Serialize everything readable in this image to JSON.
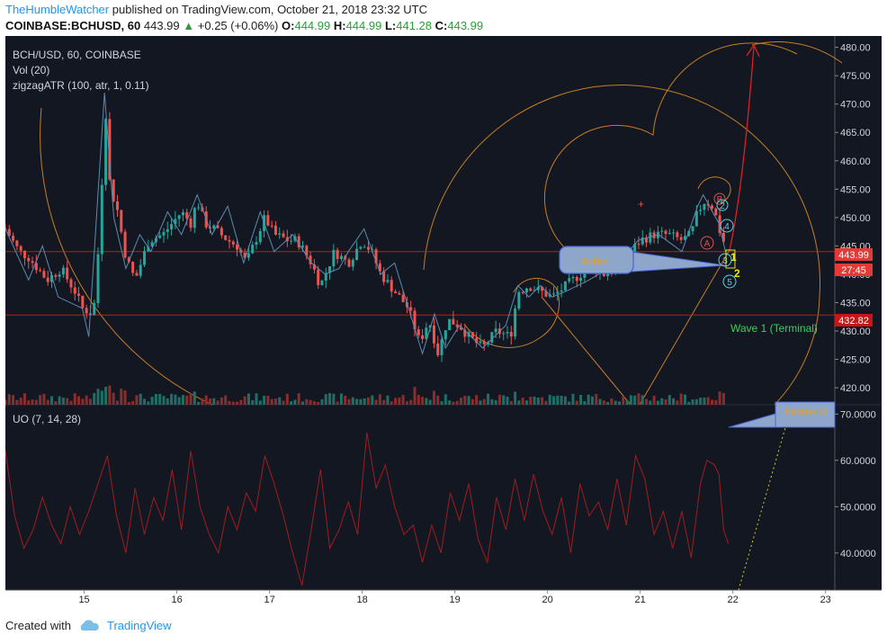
{
  "header": {
    "author": "TheHumbleWatcher",
    "published": "published on TradingView.com, October 21, 2018 23:32 UTC",
    "symbol": "COINBASE:BCHUSD, 60",
    "last": "443.99",
    "change": "+0.25 (+0.06%)",
    "o_label": "O:",
    "o": "444.99",
    "h_label": "H:",
    "h": "444.99",
    "l_label": "L:",
    "l": "441.28",
    "c_label": "C:",
    "c": "443.99"
  },
  "legend": {
    "main": "BCH/USD, 60, COINBASE",
    "vol": "Vol (20)",
    "zigzag": "zigzagATR (100, atr, 1, 0.11)",
    "uo": "UO (7, 14, 28)"
  },
  "annotations": {
    "reflex": "Reflex",
    "wave": "Wave 1 (Terminal)",
    "positive": "Positive D",
    "price_tag": "443.99",
    "countdown": "27:45",
    "level_tag": "432.82",
    "labels": [
      "B",
      "2",
      "4",
      "A",
      "3",
      "5",
      "1",
      "2"
    ]
  },
  "footer": {
    "created": "Created with",
    "brand": "TradingView"
  },
  "colors": {
    "background": "#131722",
    "up": "#26a69a",
    "down": "#ef5350",
    "zigzag": "#5b8bb0",
    "fib": "#c57e23",
    "uo": "#a01d1d",
    "hline": "#d01515",
    "arrow": "#e01f1f",
    "wave_text": "#3bd15b"
  },
  "chart_data": {
    "type": "candlestick",
    "price_axis": {
      "min": 417,
      "max": 482,
      "ticks": [
        420.0,
        425.0,
        430.0,
        435.0,
        440.0,
        445.0,
        450.0,
        455.0,
        460.0,
        465.0,
        470.0,
        475.0,
        480.0
      ]
    },
    "uo_axis": {
      "min": 32,
      "max": 72,
      "ticks": [
        40.0,
        50.0,
        60.0,
        70.0
      ]
    },
    "x_axis": {
      "labels": [
        "15",
        "16",
        "17",
        "18",
        "19",
        "20",
        "21",
        "22",
        "23"
      ],
      "start": 14.15,
      "end": 23.1
    },
    "hlines": [
      443.99,
      432.82
    ],
    "price_path": [
      [
        14.15,
        448
      ],
      [
        14.3,
        444
      ],
      [
        14.4,
        443
      ],
      [
        14.6,
        439
      ],
      [
        14.75,
        441
      ],
      [
        14.9,
        437
      ],
      [
        14.98,
        434
      ],
      [
        15.1,
        433
      ],
      [
        15.18,
        450
      ],
      [
        15.22,
        472
      ],
      [
        15.28,
        455
      ],
      [
        15.35,
        452
      ],
      [
        15.45,
        443
      ],
      [
        15.55,
        439
      ],
      [
        15.7,
        446
      ],
      [
        15.85,
        447
      ],
      [
        15.95,
        449
      ],
      [
        16.05,
        451
      ],
      [
        16.15,
        449
      ],
      [
        16.22,
        453
      ],
      [
        16.3,
        449
      ],
      [
        16.4,
        448
      ],
      [
        16.55,
        446
      ],
      [
        16.65,
        445
      ],
      [
        16.75,
        442
      ],
      [
        16.85,
        446
      ],
      [
        16.95,
        450
      ],
      [
        17.05,
        447
      ],
      [
        17.2,
        446
      ],
      [
        17.3,
        446
      ],
      [
        17.45,
        442
      ],
      [
        17.55,
        438
      ],
      [
        17.7,
        444
      ],
      [
        17.85,
        442
      ],
      [
        18.0,
        446
      ],
      [
        18.1,
        444
      ],
      [
        18.2,
        440
      ],
      [
        18.35,
        437
      ],
      [
        18.5,
        434
      ],
      [
        18.62,
        428
      ],
      [
        18.72,
        432
      ],
      [
        18.82,
        426
      ],
      [
        18.92,
        432
      ],
      [
        19.05,
        431
      ],
      [
        19.15,
        429
      ],
      [
        19.3,
        427
      ],
      [
        19.45,
        430
      ],
      [
        19.6,
        429
      ],
      [
        19.68,
        437
      ],
      [
        19.8,
        438
      ],
      [
        19.92,
        437
      ],
      [
        20.05,
        436
      ],
      [
        20.2,
        438
      ],
      [
        20.35,
        440
      ],
      [
        20.5,
        441
      ],
      [
        20.6,
        440
      ],
      [
        20.75,
        441
      ],
      [
        20.9,
        444
      ],
      [
        21.0,
        446
      ],
      [
        21.15,
        447
      ],
      [
        21.3,
        447
      ],
      [
        21.45,
        446
      ],
      [
        21.55,
        447
      ],
      [
        21.62,
        451
      ],
      [
        21.7,
        453
      ],
      [
        21.78,
        452
      ],
      [
        21.82,
        450
      ],
      [
        21.87,
        447
      ],
      [
        21.92,
        444.99
      ]
    ],
    "zigzag_points": [
      [
        14.15,
        448
      ],
      [
        14.4,
        439
      ],
      [
        14.55,
        445
      ],
      [
        14.72,
        436
      ],
      [
        14.98,
        434
      ],
      [
        15.05,
        429
      ],
      [
        15.22,
        472
      ],
      [
        15.32,
        450
      ],
      [
        15.45,
        441
      ],
      [
        15.6,
        447
      ],
      [
        15.72,
        444
      ],
      [
        15.9,
        451
      ],
      [
        16.05,
        447
      ],
      [
        16.22,
        454
      ],
      [
        16.38,
        447
      ],
      [
        16.55,
        452
      ],
      [
        16.72,
        442
      ],
      [
        16.9,
        451
      ],
      [
        17.05,
        444
      ],
      [
        17.25,
        447
      ],
      [
        17.45,
        442
      ],
      [
        17.6,
        440
      ],
      [
        17.75,
        441
      ],
      [
        17.85,
        444
      ],
      [
        18.02,
        448
      ],
      [
        18.2,
        440
      ],
      [
        18.35,
        442
      ],
      [
        18.65,
        426
      ],
      [
        18.78,
        433
      ],
      [
        18.9,
        427
      ],
      [
        19.05,
        431
      ],
      [
        19.3,
        427
      ],
      [
        19.55,
        431
      ],
      [
        19.68,
        438
      ],
      [
        19.8,
        436
      ],
      [
        19.92,
        438
      ],
      [
        20.05,
        436
      ],
      [
        20.2,
        437
      ],
      [
        20.45,
        439
      ],
      [
        20.65,
        441
      ],
      [
        20.82,
        443
      ],
      [
        20.98,
        446
      ],
      [
        21.2,
        447
      ],
      [
        21.45,
        444
      ],
      [
        21.62,
        452
      ],
      [
        21.68,
        454
      ],
      [
        21.78,
        451
      ],
      [
        21.85,
        449
      ],
      [
        21.92,
        444
      ]
    ],
    "uo_values": [
      [
        14.15,
        62
      ],
      [
        14.25,
        48
      ],
      [
        14.35,
        41
      ],
      [
        14.45,
        45
      ],
      [
        14.55,
        52
      ],
      [
        14.65,
        46
      ],
      [
        14.75,
        42
      ],
      [
        14.85,
        50
      ],
      [
        14.95,
        44
      ],
      [
        15.05,
        49
      ],
      [
        15.15,
        55
      ],
      [
        15.25,
        61
      ],
      [
        15.35,
        48
      ],
      [
        15.45,
        40
      ],
      [
        15.55,
        54
      ],
      [
        15.65,
        44
      ],
      [
        15.75,
        52
      ],
      [
        15.85,
        47
      ],
      [
        15.95,
        58
      ],
      [
        16.05,
        45
      ],
      [
        16.15,
        62
      ],
      [
        16.25,
        50
      ],
      [
        16.35,
        44
      ],
      [
        16.45,
        40
      ],
      [
        16.55,
        50
      ],
      [
        16.65,
        45
      ],
      [
        16.75,
        53
      ],
      [
        16.85,
        49
      ],
      [
        16.95,
        61
      ],
      [
        17.05,
        55
      ],
      [
        17.15,
        48
      ],
      [
        17.25,
        40
      ],
      [
        17.35,
        33
      ],
      [
        17.45,
        45
      ],
      [
        17.55,
        58
      ],
      [
        17.65,
        41
      ],
      [
        17.75,
        45
      ],
      [
        17.85,
        51
      ],
      [
        17.95,
        44
      ],
      [
        18.05,
        66
      ],
      [
        18.15,
        54
      ],
      [
        18.25,
        59
      ],
      [
        18.35,
        50
      ],
      [
        18.45,
        44
      ],
      [
        18.55,
        46
      ],
      [
        18.65,
        38
      ],
      [
        18.75,
        46
      ],
      [
        18.85,
        40
      ],
      [
        18.95,
        53
      ],
      [
        19.05,
        47
      ],
      [
        19.15,
        55
      ],
      [
        19.25,
        43
      ],
      [
        19.35,
        38
      ],
      [
        19.45,
        52
      ],
      [
        19.55,
        45
      ],
      [
        19.65,
        56
      ],
      [
        19.75,
        47
      ],
      [
        19.85,
        57
      ],
      [
        19.95,
        49
      ],
      [
        20.05,
        44
      ],
      [
        20.15,
        52
      ],
      [
        20.25,
        40
      ],
      [
        20.35,
        55
      ],
      [
        20.45,
        48
      ],
      [
        20.55,
        51
      ],
      [
        20.65,
        45
      ],
      [
        20.75,
        56
      ],
      [
        20.85,
        46
      ],
      [
        20.95,
        61
      ],
      [
        21.05,
        56
      ],
      [
        21.15,
        44
      ],
      [
        21.25,
        49
      ],
      [
        21.35,
        41
      ],
      [
        21.45,
        49
      ],
      [
        21.55,
        39
      ],
      [
        21.65,
        55
      ],
      [
        21.72,
        60
      ],
      [
        21.8,
        59
      ],
      [
        21.85,
        57
      ],
      [
        21.9,
        45
      ],
      [
        21.95,
        42
      ]
    ]
  }
}
